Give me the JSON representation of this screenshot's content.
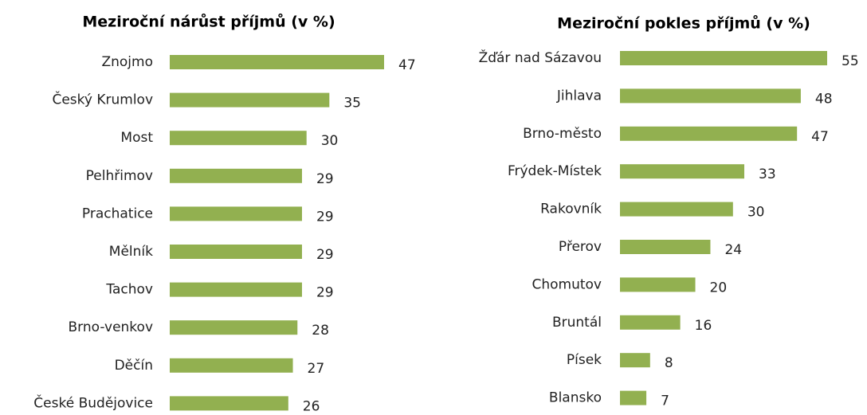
{
  "chart_data": [
    {
      "type": "bar",
      "orientation": "horizontal",
      "title": "Meziroční nárůst příjmů (v %)",
      "color": "#92b050",
      "categories": [
        "Znojmo",
        "Český Krumlov",
        "Most",
        "Pelhřimov",
        "Prachatice",
        "Mělník",
        "Tachov",
        "Brno-venkov",
        "Děčín",
        "České Budějovice"
      ],
      "values": [
        47,
        35,
        30,
        29,
        29,
        29,
        29,
        28,
        27,
        26
      ]
    },
    {
      "type": "bar",
      "orientation": "horizontal",
      "title": "Meziroční pokles příjmů (v %)",
      "color": "#92b050",
      "categories": [
        "Žďár nad Sázavou",
        "Jihlava",
        "Brno-město",
        "Frýdek-Místek",
        "Rakovník",
        "Přerov",
        "Chomutov",
        "Bruntál",
        "Písek",
        "Blansko"
      ],
      "values": [
        55,
        48,
        47,
        33,
        30,
        24,
        20,
        16,
        8,
        7
      ]
    }
  ]
}
